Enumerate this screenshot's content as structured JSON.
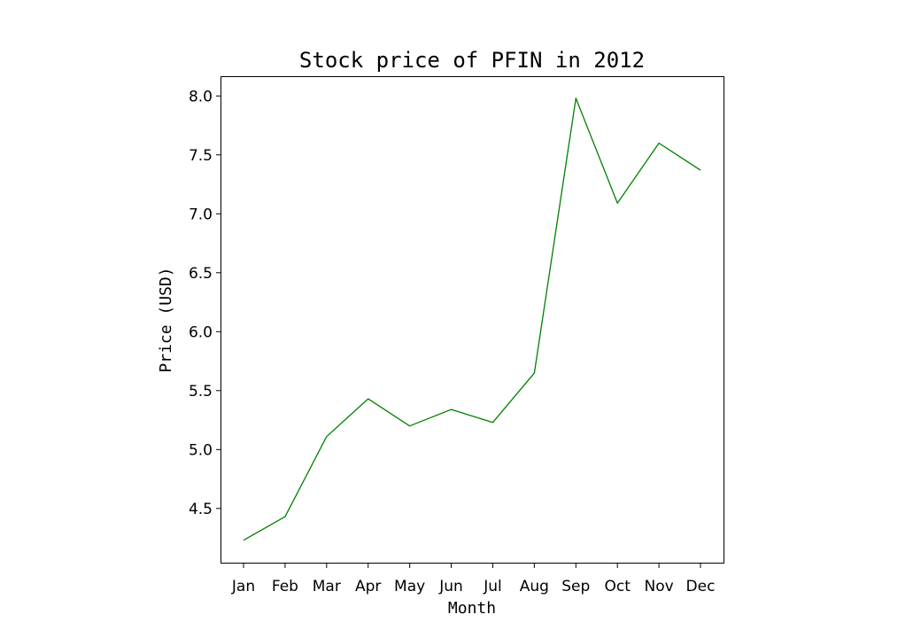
{
  "chart_data": {
    "type": "line",
    "title": "Stock price of PFIN in 2012",
    "xlabel": "Month",
    "ylabel": "Price (USD)",
    "categories": [
      "Jan",
      "Feb",
      "Mar",
      "Apr",
      "May",
      "Jun",
      "Jul",
      "Aug",
      "Sep",
      "Oct",
      "Nov",
      "Dec"
    ],
    "series": [
      {
        "color": "#008000",
        "values": [
          4.23,
          4.43,
          5.11,
          5.43,
          5.2,
          5.34,
          5.23,
          5.65,
          7.98,
          7.09,
          7.6,
          7.37
        ]
      }
    ],
    "ylim": [
      4.04,
      8.16
    ],
    "yticks": [
      4.5,
      5.0,
      5.5,
      6.0,
      6.5,
      7.0,
      7.5,
      8.0
    ],
    "ytick_labels": [
      "4.5",
      "5.0",
      "5.5",
      "6.0",
      "6.5",
      "7.0",
      "7.5",
      "8.0"
    ],
    "grid": false,
    "legend": "none"
  }
}
